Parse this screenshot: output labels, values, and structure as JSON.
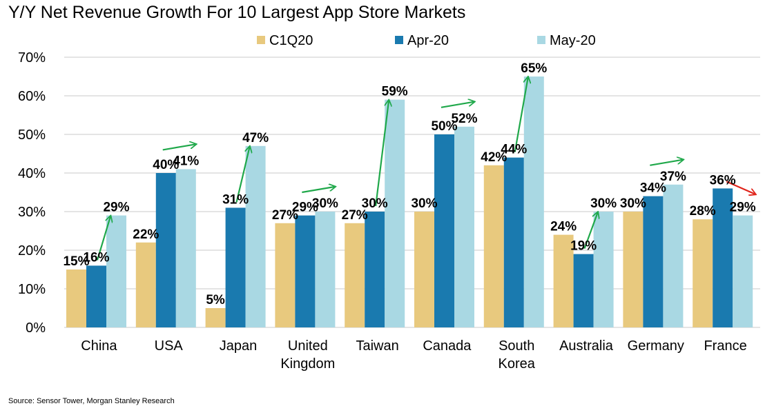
{
  "chart_data": {
    "type": "bar",
    "title": "Y/Y Net Revenue Growth For 10 Largest App Store Markets",
    "categories": [
      "China",
      "USA",
      "Japan",
      "United Kingdom",
      "Taiwan",
      "Canada",
      "South Korea",
      "Australia",
      "Germany",
      "France"
    ],
    "category_lines": [
      [
        "China"
      ],
      [
        "USA"
      ],
      [
        "Japan"
      ],
      [
        "United",
        "Kingdom"
      ],
      [
        "Taiwan"
      ],
      [
        "Canada"
      ],
      [
        "South",
        "Korea"
      ],
      [
        "Australia"
      ],
      [
        "Germany"
      ],
      [
        "France"
      ]
    ],
    "series": [
      {
        "name": "C1Q20",
        "color": "#E8C97E",
        "values": [
          15,
          22,
          5,
          27,
          27,
          30,
          42,
          24,
          30,
          28
        ],
        "labels": [
          "15%",
          "22%",
          "5%",
          "27%",
          "27%",
          "30%",
          "42%",
          "24%",
          "30%",
          "28%"
        ]
      },
      {
        "name": "Apr-20",
        "color": "#1A7AAF",
        "values": [
          16,
          40,
          31,
          29,
          30,
          50,
          44,
          19,
          34,
          36
        ],
        "labels": [
          "16%",
          "40%",
          "31%",
          "29%",
          "30%",
          "50%",
          "44%",
          "19%",
          "34%",
          "36%"
        ]
      },
      {
        "name": "May-20",
        "color": "#A9D8E3",
        "values": [
          29,
          41,
          47,
          30,
          59,
          52,
          65,
          30,
          37,
          29
        ],
        "labels": [
          "29%",
          "41%",
          "47%",
          "30%",
          "59%",
          "52%",
          "65%",
          "30%",
          "37%",
          "29%"
        ]
      }
    ],
    "ylim": [
      0,
      70
    ],
    "yticks": [
      0,
      10,
      20,
      30,
      40,
      50,
      60,
      70
    ],
    "ytick_labels": [
      "0%",
      "10%",
      "20%",
      "30%",
      "40%",
      "50%",
      "60%",
      "70%"
    ],
    "xlabel": "",
    "ylabel": "",
    "grid": true,
    "legend_position": "top",
    "annotations": {
      "type": "trend-arrows from Apr-20 to May-20",
      "directions": [
        "up",
        "up",
        "up",
        "up",
        "up",
        "up",
        "up",
        "up",
        "up",
        "down"
      ],
      "up_color": "#1FA84A",
      "down_color": "#E0241B"
    }
  },
  "source": "Source: Sensor Tower, Morgan Stanley Research"
}
